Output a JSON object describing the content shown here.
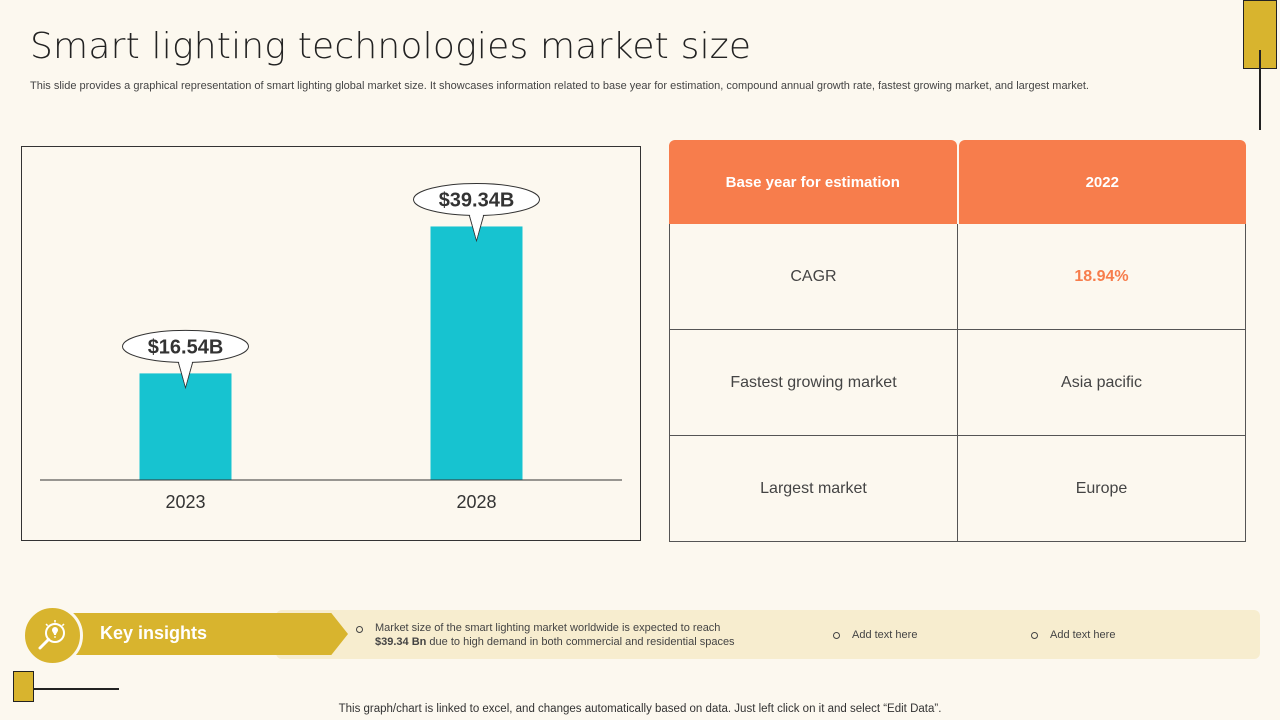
{
  "header": {
    "title": "Smart lighting technologies market size",
    "subtitle": "This slide provides a graphical representation of smart lighting global market size. It showcases information related to base year for estimation, compound annual growth rate, fastest growing market, and largest market."
  },
  "chart_data": {
    "type": "bar",
    "categories": [
      "2023",
      "2028"
    ],
    "values": [
      16.54,
      39.34
    ],
    "data_labels": [
      "$16.54B",
      "$39.34B"
    ],
    "title": "",
    "xlabel": "",
    "ylabel": "",
    "ylim": [
      0,
      45
    ],
    "grid": false,
    "bar_color": "#17c3d0"
  },
  "table": {
    "header": [
      "Base year for estimation",
      "2022"
    ],
    "rows": [
      [
        "CAGR",
        "18.94%"
      ],
      [
        "Fastest growing market",
        "Asia pacific"
      ],
      [
        "Largest market",
        "Europe"
      ]
    ]
  },
  "insights": {
    "label": "Key insights",
    "bullet1_line1": "Market size of the smart lighting market worldwide is expected to reach",
    "bullet1_bold": "$39.34 Bn",
    "bullet1_line2": " due to high demand in both commercial and residential spaces",
    "bullet2": "Add text here",
    "bullet3": "Add text here",
    "icon": "lightbulb-magnifier-icon"
  },
  "footer": "This graph/chart is linked to excel,  and changes automatically based on data. Just left click on it and select “Edit Data”.",
  "colors": {
    "accent_orange": "#f77d4c",
    "accent_gold": "#d8b42e",
    "bar": "#17c3d0",
    "background": "#fcf8ef"
  }
}
